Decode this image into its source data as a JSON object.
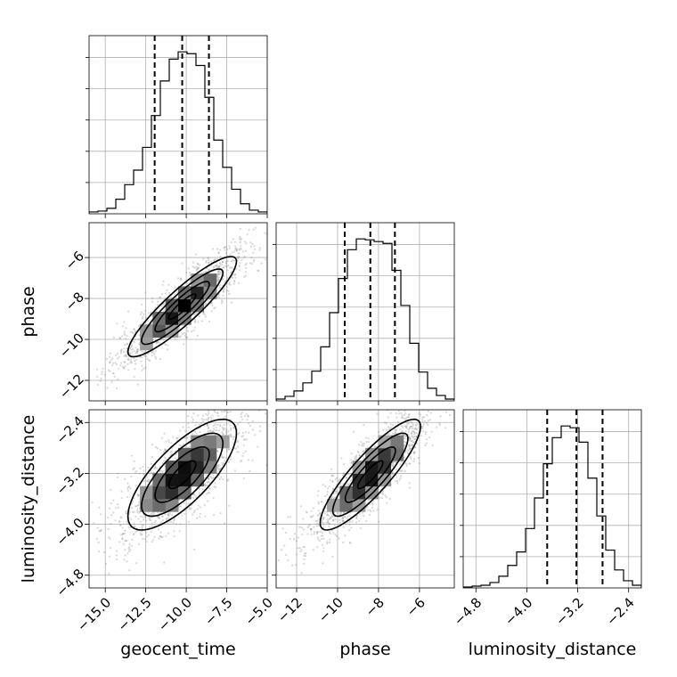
{
  "chart_data": {
    "type": "corner",
    "parameters": [
      {
        "name": "geocent_time",
        "range": [
          -16,
          -5
        ],
        "ticks": [
          -15.0,
          -12.5,
          -10.0,
          -7.5,
          -5.0
        ],
        "tick_labels": [
          "−15.0",
          "−12.5",
          "−10.0",
          "−7.5",
          "−5.0"
        ],
        "quantiles": [
          -11.95,
          -10.25,
          -8.6
        ],
        "hist_edges_start": -16,
        "hist_bin_width": 0.55,
        "hist_values": [
          2,
          3,
          6,
          16,
          32,
          48,
          73,
          108,
          146,
          170,
          178,
          176,
          163,
          128,
          81,
          51,
          27,
          11,
          4,
          2
        ]
      },
      {
        "name": "phase",
        "range": [
          -13.0,
          -4.3
        ],
        "ticks": [
          -12,
          -10,
          -8,
          -6
        ],
        "tick_labels": [
          "−12",
          "−10",
          "−8",
          "−6"
        ],
        "quantiles": [
          -9.65,
          -8.4,
          -7.2
        ],
        "hist_edges_start": -13.0,
        "hist_bin_width": 0.435,
        "hist_values": [
          2,
          5,
          11,
          20,
          33,
          60,
          98,
          136,
          168,
          180,
          179,
          177,
          175,
          145,
          106,
          64,
          32,
          14,
          6,
          2
        ]
      },
      {
        "name": "luminosity_distance",
        "range": [
          -5.0,
          -2.2
        ],
        "ticks": [
          -4.8,
          -4.0,
          -3.2,
          -2.4
        ],
        "tick_labels": [
          "−4.8",
          "−4.0",
          "−3.2",
          "−2.4"
        ],
        "quantiles": [
          -3.68,
          -3.22,
          -2.81
        ],
        "hist_edges_start": -5.0,
        "hist_bin_width": 0.14,
        "hist_values": [
          1,
          2,
          3,
          6,
          13,
          25,
          40,
          66,
          100,
          138,
          167,
          180,
          178,
          162,
          122,
          80,
          42,
          20,
          8,
          3
        ]
      }
    ],
    "correlations": {
      "0_1": 0.9,
      "0_2": 0.75,
      "1_2": 0.87
    },
    "axis_labels": [
      "geocent_time",
      "phase",
      "luminosity_distance"
    ],
    "grid": true,
    "contour_levels": [
      0.5,
      1.0,
      1.5,
      2.0
    ]
  }
}
